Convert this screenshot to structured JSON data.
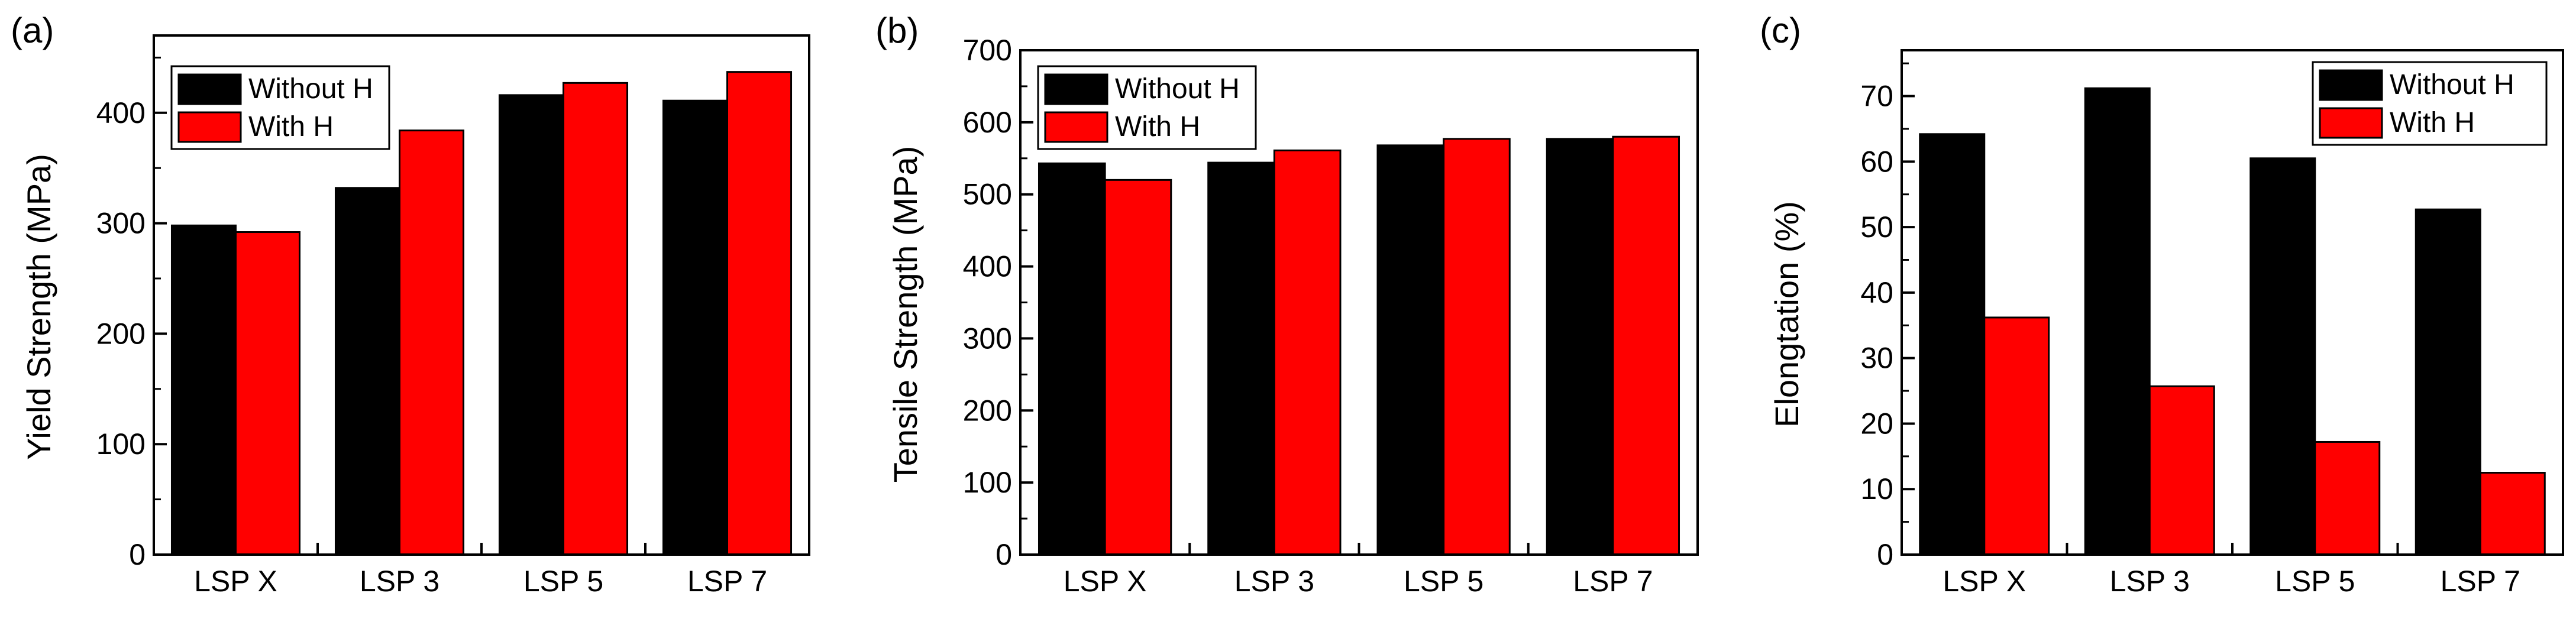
{
  "chart_data": [
    {
      "type": "bar",
      "panel_label": "(a)",
      "categories": [
        "LSP X",
        "LSP 3",
        "LSP 5",
        "LSP 7"
      ],
      "ylabel": "Yield Strength (MPa)",
      "xlabel": "",
      "ylim": [
        0,
        470
      ],
      "yticks": [
        0,
        100,
        200,
        300,
        400
      ],
      "legend": "top-left",
      "series": [
        {
          "name": "Without H",
          "color": "#000000",
          "values": [
            298,
            332,
            416,
            411
          ]
        },
        {
          "name": "With H",
          "color": "#ff0000",
          "values": [
            292,
            384,
            427,
            437
          ]
        }
      ]
    },
    {
      "type": "bar",
      "panel_label": "(b)",
      "categories": [
        "LSP X",
        "LSP 3",
        "LSP 5",
        "LSP 7"
      ],
      "ylabel": "Tensile Strength (MPa)",
      "xlabel": "",
      "ylim": [
        0,
        700
      ],
      "yticks": [
        0,
        100,
        200,
        300,
        400,
        500,
        600,
        700
      ],
      "legend": "top-left",
      "series": [
        {
          "name": "Without H",
          "color": "#000000",
          "values": [
            543,
            544,
            568,
            577
          ]
        },
        {
          "name": "With H",
          "color": "#ff0000",
          "values": [
            520,
            561,
            577,
            580
          ]
        }
      ]
    },
    {
      "type": "bar",
      "panel_label": "(c)",
      "categories": [
        "LSP X",
        "LSP 3",
        "LSP 5",
        "LSP 7"
      ],
      "ylabel": "Elongtation (%)",
      "xlabel": "",
      "ylim": [
        0,
        77
      ],
      "yticks": [
        0,
        10,
        20,
        30,
        40,
        50,
        60,
        70
      ],
      "legend": "top-right",
      "series": [
        {
          "name": "Without H",
          "color": "#000000",
          "values": [
            64.2,
            71.2,
            60.5,
            52.7
          ]
        },
        {
          "name": "With H",
          "color": "#ff0000",
          "values": [
            36.2,
            25.7,
            17.2,
            12.5
          ]
        }
      ]
    }
  ]
}
